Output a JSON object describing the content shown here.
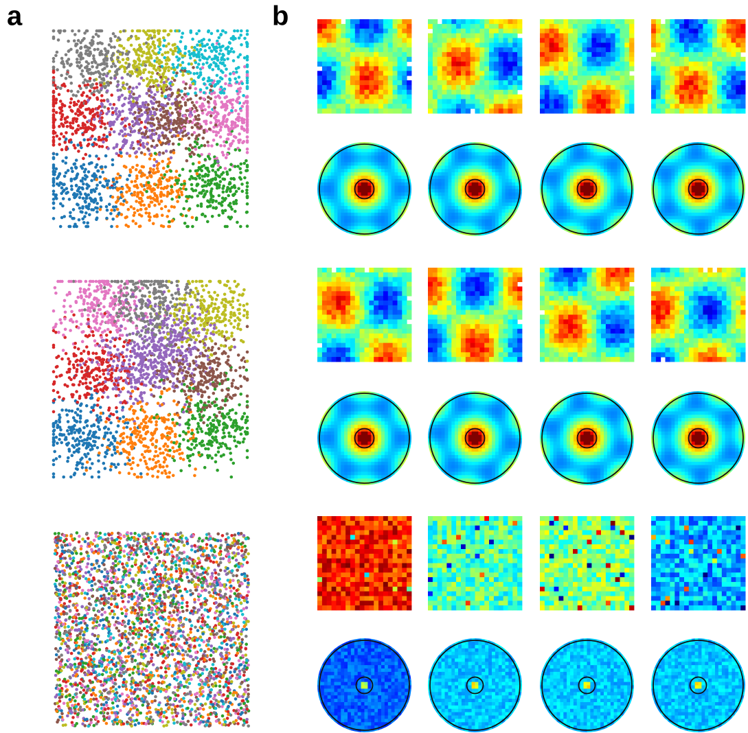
{
  "panel_labels": [
    "a",
    "b"
  ]
}
